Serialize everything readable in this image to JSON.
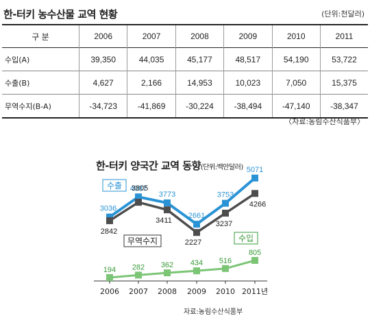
{
  "table": {
    "title": "한-터키 농수산물 교역 현황",
    "unit": "(단위:천달러)",
    "header": [
      "구  분",
      "2006",
      "2007",
      "2008",
      "2009",
      "2010",
      "2011"
    ],
    "rows": [
      {
        "label": "수입(A)",
        "values": [
          "39,350",
          "44,035",
          "45,177",
          "48,517",
          "54,190",
          "53,722"
        ]
      },
      {
        "label": "수출(B)",
        "values": [
          "4,627",
          "2,166",
          "14,953",
          "10,023",
          "7,050",
          "15,375"
        ]
      },
      {
        "label": "무역수지(B-A)",
        "values": [
          "-34,723",
          "-41,869",
          "-30,224",
          "-38,494",
          "-47,140",
          "-38,347"
        ]
      }
    ],
    "source": "〈자료:농림수산식품부〉"
  },
  "chart_data": {
    "type": "line",
    "title": "한-터키 양국간 교역 동향",
    "unit": "(단위:백만달러)",
    "categories": [
      "2006",
      "2007",
      "2008",
      "2009",
      "2010",
      "2011년"
    ],
    "series": [
      {
        "name": "수출",
        "values": [
          3036,
          4087,
          3773,
          2661,
          3753,
          5071
        ],
        "color": "#2a93d5",
        "labels": [
          "3036",
          "4087",
          "3773",
          "2661",
          "3753",
          "5071"
        ]
      },
      {
        "name": "무역수지",
        "values": [
          2842,
          3805,
          3411,
          2227,
          3237,
          4266
        ],
        "color": "#4d4d4d",
        "labels": [
          "2842",
          "3805",
          "3411",
          "2227",
          "3237",
          "4266"
        ]
      },
      {
        "name": "수입",
        "values": [
          194,
          282,
          362,
          434,
          516,
          805
        ],
        "color": "#7cc576",
        "labels": [
          "194",
          "282",
          "362",
          "434",
          "516",
          "805"
        ]
      }
    ],
    "grid": false,
    "source": "자료:농림수산식품부"
  }
}
